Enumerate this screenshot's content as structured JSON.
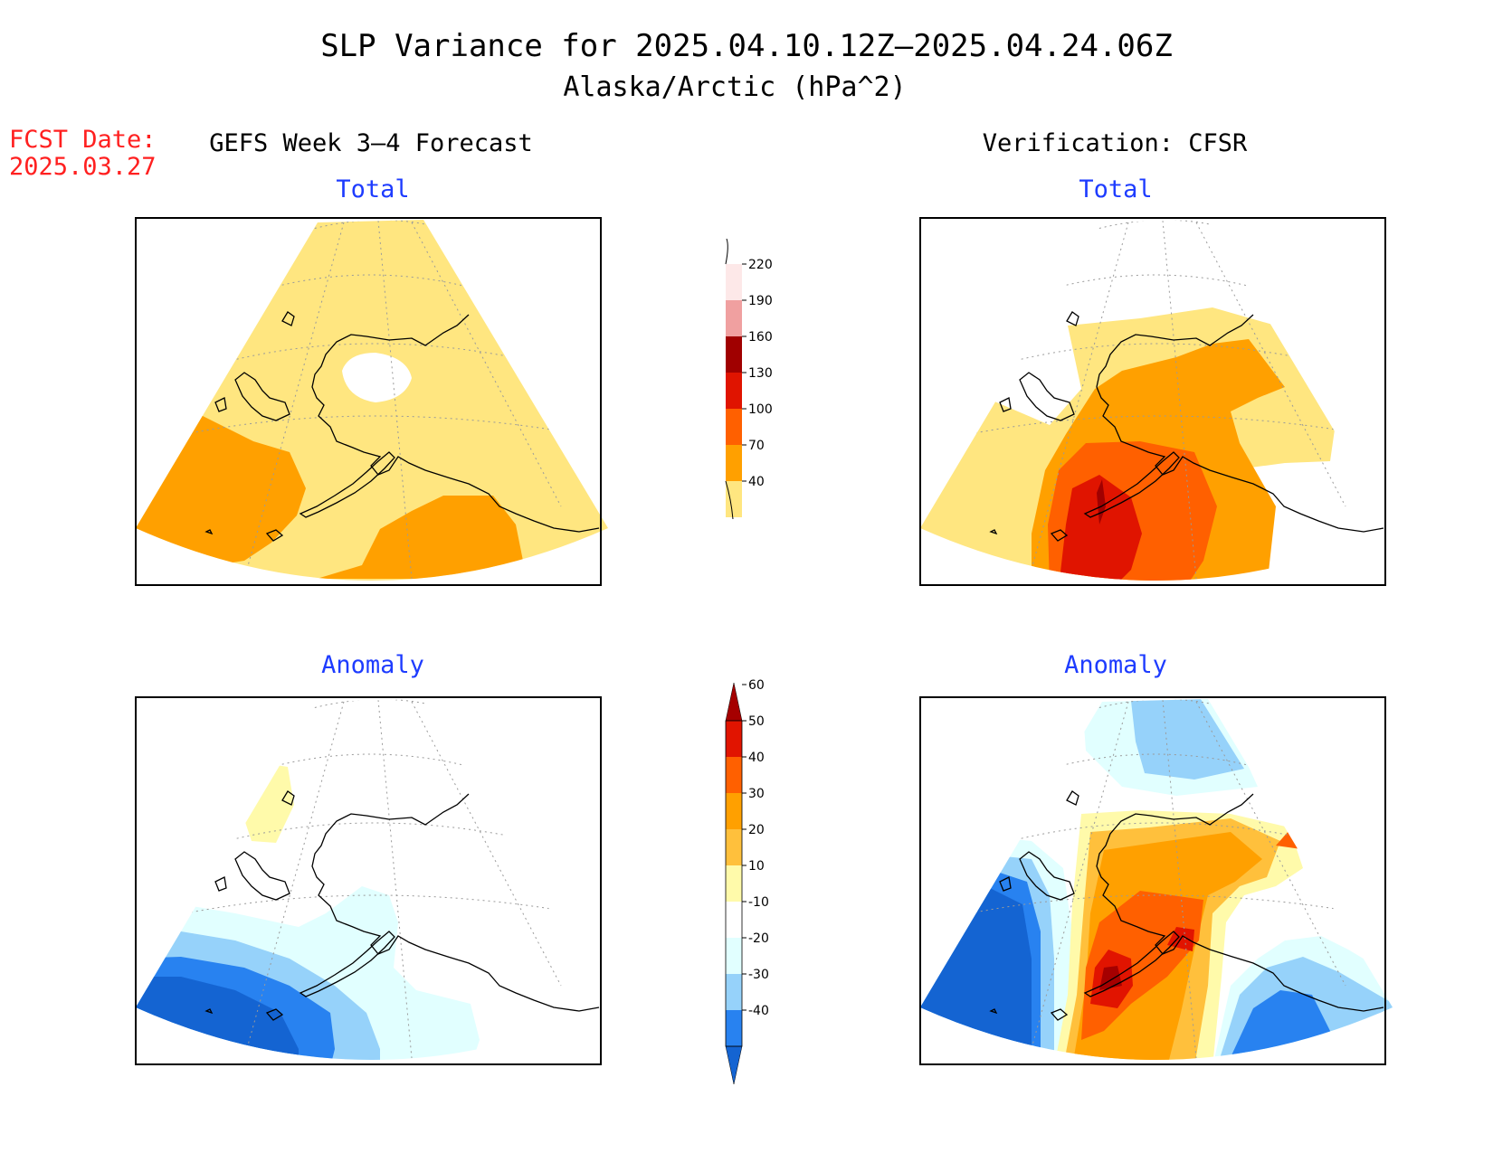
{
  "title": "SLP Variance for 2025.04.10.12Z–2025.04.24.06Z",
  "subtitle": "Alaska/Arctic (hPa^2)",
  "fcst_label": "FCST Date:",
  "fcst_date": "2025.03.27",
  "left_header": "GEFS Week 3–4 Forecast",
  "right_header": "Verification: CFSR",
  "panel_titles": {
    "tl": "Total",
    "tr": "Total",
    "bl": "Anomaly",
    "br": "Anomaly"
  },
  "colors": {
    "title_text": "#000000",
    "fcst_text": "#ff2020",
    "panel_title_text": "#1e3cff",
    "coast": "#000000",
    "grid": "#9a9a9a"
  },
  "total_colorbar": {
    "levels": [
      "40",
      "70",
      "100",
      "130",
      "160",
      "190",
      "220"
    ],
    "colors": [
      "#ffe680",
      "#ffa000",
      "#ff6000",
      "#e01400",
      "#a00000",
      "#f0a0a0",
      "#fde8e8"
    ]
  },
  "anomaly_colorbar": {
    "levels": [
      "-40",
      "-30",
      "-20",
      "-10",
      "10",
      "20",
      "30",
      "40",
      "50",
      "60"
    ],
    "colors": [
      "#1464d2",
      "#2882f0",
      "#96d2fa",
      "#e1ffff",
      "#ffffff",
      "#fffaaa",
      "#ffc03c",
      "#ffa000",
      "#ff6000",
      "#e11400",
      "#a50000"
    ]
  }
}
